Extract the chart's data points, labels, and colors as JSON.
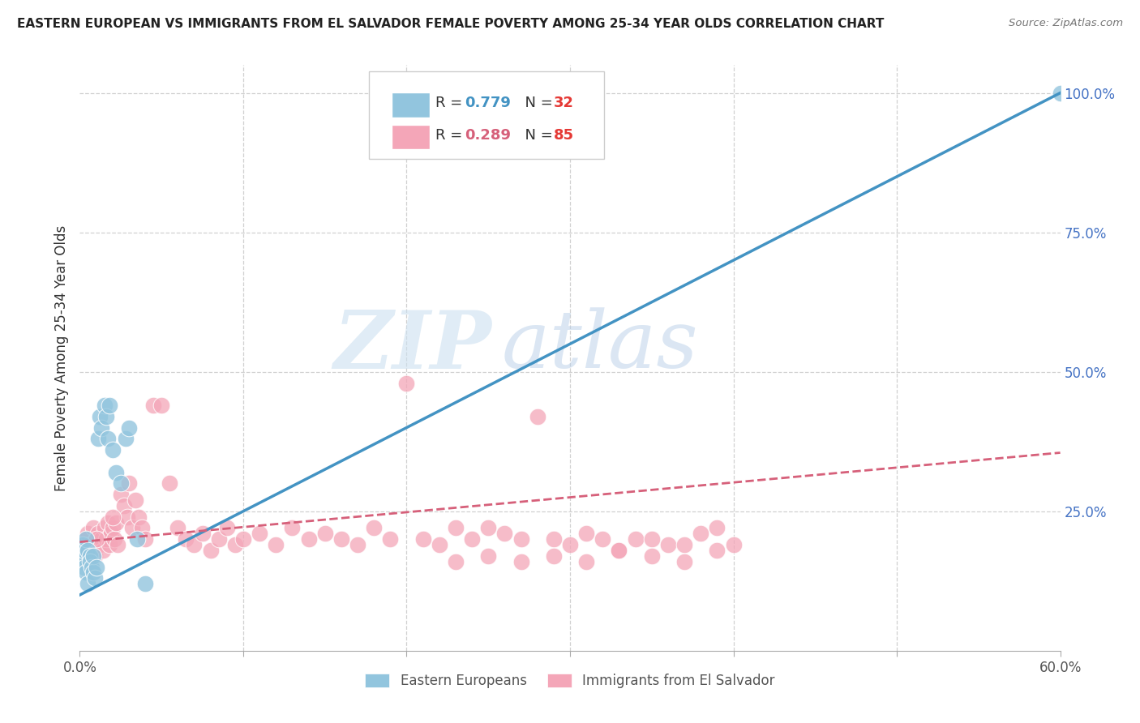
{
  "title": "EASTERN EUROPEAN VS IMMIGRANTS FROM EL SALVADOR FEMALE POVERTY AMONG 25-34 YEAR OLDS CORRELATION CHART",
  "source": "Source: ZipAtlas.com",
  "ylabel": "Female Poverty Among 25-34 Year Olds",
  "r_eastern": 0.779,
  "n_eastern": 32,
  "r_salvador": 0.289,
  "n_salvador": 85,
  "eastern_color": "#92c5de",
  "salvador_color": "#f4a6b8",
  "eastern_line_color": "#4393c3",
  "salvador_line_color": "#d6607a",
  "watermark_zip": "ZIP",
  "watermark_atlas": "atlas",
  "legend_entries": [
    "Eastern Europeans",
    "Immigrants from El Salvador"
  ],
  "xlim": [
    0.0,
    0.6
  ],
  "ylim": [
    0.0,
    1.05
  ],
  "east_line_x0": 0.0,
  "east_line_y0": 0.1,
  "east_line_x1": 0.6,
  "east_line_y1": 1.0,
  "sal_line_x0": 0.0,
  "sal_line_y0": 0.195,
  "sal_line_x1": 0.6,
  "sal_line_y1": 0.355,
  "background_color": "#ffffff",
  "grid_color": "#d0d0d0",
  "right_ytick_color": "#4472C4",
  "right_ytick_vals": [
    0.25,
    0.5,
    0.75,
    1.0
  ],
  "right_ytick_labels": [
    "25.0%",
    "50.0%",
    "75.0%",
    "100.0%"
  ],
  "east_scatter_x": [
    0.001,
    0.002,
    0.002,
    0.003,
    0.003,
    0.004,
    0.004,
    0.005,
    0.005,
    0.006,
    0.006,
    0.007,
    0.008,
    0.008,
    0.009,
    0.01,
    0.011,
    0.012,
    0.013,
    0.015,
    0.016,
    0.017,
    0.018,
    0.02,
    0.022,
    0.025,
    0.028,
    0.03,
    0.035,
    0.04,
    0.28,
    0.6
  ],
  "east_scatter_y": [
    0.17,
    0.19,
    0.16,
    0.18,
    0.15,
    0.2,
    0.14,
    0.18,
    0.12,
    0.17,
    0.16,
    0.15,
    0.14,
    0.17,
    0.13,
    0.15,
    0.38,
    0.42,
    0.4,
    0.44,
    0.42,
    0.38,
    0.44,
    0.36,
    0.32,
    0.3,
    0.38,
    0.4,
    0.2,
    0.12,
    0.985,
    1.0
  ],
  "sal_scatter_x": [
    0.001,
    0.002,
    0.003,
    0.004,
    0.005,
    0.006,
    0.007,
    0.008,
    0.009,
    0.01,
    0.011,
    0.012,
    0.013,
    0.014,
    0.015,
    0.016,
    0.017,
    0.018,
    0.019,
    0.02,
    0.021,
    0.022,
    0.023,
    0.025,
    0.027,
    0.029,
    0.03,
    0.032,
    0.034,
    0.036,
    0.038,
    0.04,
    0.045,
    0.05,
    0.055,
    0.06,
    0.065,
    0.07,
    0.075,
    0.08,
    0.085,
    0.09,
    0.095,
    0.1,
    0.11,
    0.12,
    0.13,
    0.14,
    0.15,
    0.16,
    0.17,
    0.18,
    0.19,
    0.2,
    0.21,
    0.22,
    0.23,
    0.24,
    0.25,
    0.26,
    0.27,
    0.28,
    0.29,
    0.3,
    0.31,
    0.32,
    0.33,
    0.34,
    0.35,
    0.36,
    0.37,
    0.38,
    0.39,
    0.4,
    0.23,
    0.25,
    0.27,
    0.29,
    0.31,
    0.33,
    0.35,
    0.37,
    0.39,
    0.01,
    0.02
  ],
  "sal_scatter_y": [
    0.19,
    0.18,
    0.2,
    0.17,
    0.21,
    0.19,
    0.18,
    0.22,
    0.17,
    0.2,
    0.21,
    0.19,
    0.2,
    0.18,
    0.22,
    0.2,
    0.23,
    0.19,
    0.21,
    0.22,
    0.2,
    0.23,
    0.19,
    0.28,
    0.26,
    0.24,
    0.3,
    0.22,
    0.27,
    0.24,
    0.22,
    0.2,
    0.44,
    0.44,
    0.3,
    0.22,
    0.2,
    0.19,
    0.21,
    0.18,
    0.2,
    0.22,
    0.19,
    0.2,
    0.21,
    0.19,
    0.22,
    0.2,
    0.21,
    0.2,
    0.19,
    0.22,
    0.2,
    0.48,
    0.2,
    0.19,
    0.22,
    0.2,
    0.22,
    0.21,
    0.2,
    0.42,
    0.2,
    0.19,
    0.21,
    0.2,
    0.18,
    0.2,
    0.2,
    0.19,
    0.19,
    0.21,
    0.22,
    0.19,
    0.16,
    0.17,
    0.16,
    0.17,
    0.16,
    0.18,
    0.17,
    0.16,
    0.18,
    0.2,
    0.24
  ]
}
